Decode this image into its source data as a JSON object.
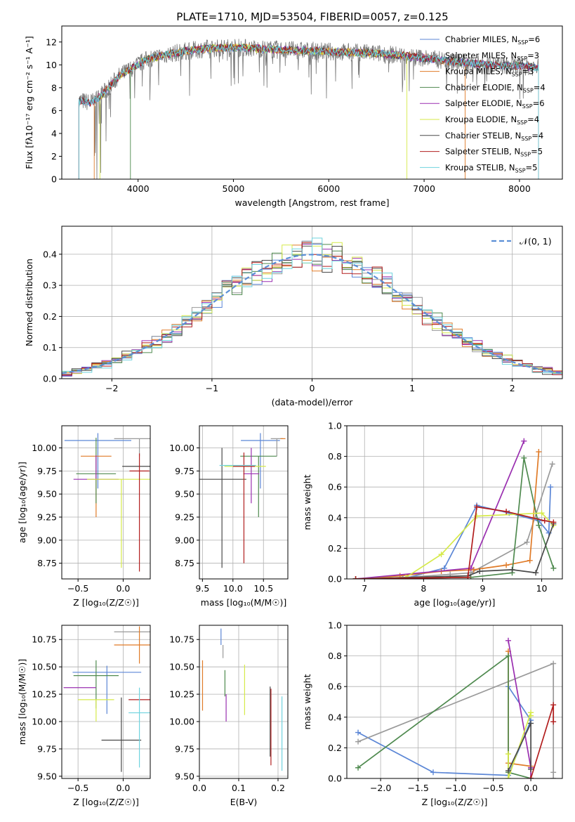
{
  "figure_title": "PLATE=1710, MJD=53504, FIBERID=0057, z=0.125",
  "models": [
    {
      "name": "Chabrier MILES",
      "nssp": "6",
      "color": "#5b86d6"
    },
    {
      "name": "Salpeter MILES",
      "nssp": "3",
      "color": "#9a9a9a"
    },
    {
      "name": "Kroupa MILES",
      "nssp": "3",
      "color": "#e07b28"
    },
    {
      "name": "Chabrier ELODIE",
      "nssp": "4",
      "color": "#4f8a4f"
    },
    {
      "name": "Salpeter ELODIE",
      "nssp": "6",
      "color": "#9a2fb0"
    },
    {
      "name": "Kroupa ELODIE",
      "nssp": "4",
      "color": "#d6ea4a"
    },
    {
      "name": "Chabrier STELIB",
      "nssp": "4",
      "color": "#4a4a4a"
    },
    {
      "name": "Salpeter STELIB",
      "nssp": "5",
      "color": "#b21e1e"
    },
    {
      "name": "Kroupa STELIB",
      "nssp": "5",
      "color": "#6fd3de"
    }
  ],
  "chart_data": [
    {
      "id": "spectrum",
      "type": "line",
      "xlabel": "wavelength [Angstrom, rest frame]",
      "ylabel": "Flux [fλ10⁻¹⁷ erg cm⁻² s⁻¹ A⁻¹]",
      "xlim": [
        3200,
        8450
      ],
      "ylim": [
        0,
        13.4
      ],
      "xticks": [
        4000,
        5000,
        6000,
        7000,
        8000
      ],
      "yticks": [
        0,
        2,
        4,
        6,
        8,
        10,
        12
      ],
      "continuum": {
        "x": [
          3380,
          3500,
          3600,
          3700,
          3800,
          3950,
          4100,
          4300,
          4500,
          4700,
          4900,
          5100,
          5300,
          5600,
          5900,
          6200,
          6500,
          6800,
          7100,
          7400,
          7700,
          8000,
          8200
        ],
        "y": [
          6.9,
          6.7,
          7.2,
          8.1,
          9.0,
          9.8,
          10.5,
          10.9,
          11.2,
          11.4,
          11.5,
          11.5,
          11.4,
          11.3,
          11.2,
          11.1,
          11.0,
          10.8,
          10.5,
          10.2,
          10.0,
          9.9,
          9.8
        ]
      },
      "model_ranges": [
        [
          3380,
          8200
        ],
        [
          3380,
          8200
        ],
        [
          3540,
          7430
        ],
        [
          3920,
          8200
        ],
        [
          3380,
          8200
        ],
        [
          3600,
          6820
        ],
        [
          3380,
          8200
        ],
        [
          3380,
          8200
        ],
        [
          3380,
          8200
        ]
      ]
    },
    {
      "id": "residuals",
      "type": "histogram",
      "xlabel": "(data-model)/error",
      "ylabel": "Normed distribution",
      "xlim": [
        -2.5,
        2.5
      ],
      "ylim": [
        0,
        0.49
      ],
      "xticks": [
        -2,
        -1,
        0,
        1,
        2
      ],
      "yticks": [
        0.0,
        0.1,
        0.2,
        0.3,
        0.4
      ],
      "bin_width": 0.1,
      "normal_label": "𝒩(0, 1)"
    },
    {
      "id": "age-vs-Z",
      "type": "scatter",
      "xlabel": "Z [log₁₀(Z/Z☉)]",
      "ylabel": "age  [log₁₀(age/yr)]",
      "xlim": [
        -0.68,
        0.3
      ],
      "ylim": [
        8.58,
        10.24
      ],
      "xticks": [
        -0.5,
        0.0
      ],
      "yticks": [
        8.75,
        9.0,
        9.25,
        9.5,
        9.75,
        10.0
      ],
      "points": [
        {
          "x": -0.28,
          "y": 10.08,
          "xerr": 0.37,
          "yerr": [
            0.52,
            0.08
          ]
        },
        {
          "x": 0.18,
          "y": 10.1,
          "xerr": 0.28,
          "yerr": [
            0.19,
            0.0
          ]
        },
        {
          "x": -0.3,
          "y": 9.91,
          "xerr": 0.17,
          "yerr": [
            0.66,
            0.0
          ]
        },
        {
          "x": -0.3,
          "y": 9.72,
          "xerr": 0.22,
          "yerr": [
            0.32,
            0.39
          ]
        },
        {
          "x": -0.3,
          "y": 9.66,
          "xerr": 0.25,
          "yerr": [
            0.0,
            0.26
          ]
        },
        {
          "x": -0.02,
          "y": 9.66,
          "xerr": 0.38,
          "yerr": [
            0.96,
            0.0
          ]
        },
        {
          "x": 0.18,
          "y": 9.8,
          "xerr": 0.19,
          "yerr": [
            0.0,
            0.0
          ]
        },
        {
          "x": 0.18,
          "y": 9.75,
          "xerr": 0.11,
          "yerr": [
            1.09,
            0.19
          ]
        }
      ]
    },
    {
      "id": "age-vs-mass",
      "type": "scatter",
      "xlabel": "mass [log₁₀(M/M☉)]",
      "ylabel": "",
      "xlim": [
        9.45,
        10.9
      ],
      "ylim": [
        8.58,
        10.24
      ],
      "xticks": [
        9.5,
        10.0,
        10.5
      ],
      "yticks": [
        8.75,
        9.0,
        9.25,
        9.5,
        9.75,
        10.0
      ],
      "points": [
        {
          "x": 10.45,
          "y": 10.08,
          "xerr": 0.32,
          "yerr": [
            0.52,
            0.08
          ]
        },
        {
          "x": 10.72,
          "y": 10.1,
          "xerr": 0.1,
          "yerr": [
            0.19,
            0.0
          ]
        },
        {
          "x": 10.82,
          "y": 10.1,
          "xerr": 0.04,
          "yerr": [
            0.0,
            0.0
          ]
        },
        {
          "x": 10.42,
          "y": 9.91,
          "xerr": 0.3,
          "yerr": [
            0.66,
            0.0
          ]
        },
        {
          "x": 10.3,
          "y": 9.72,
          "xerr": 0.13,
          "yerr": [
            0.32,
            0.28
          ]
        },
        {
          "x": 10.2,
          "y": 9.8,
          "xerr": 0.34,
          "yerr": [
            0.0,
            0.0
          ]
        },
        {
          "x": 9.82,
          "y": 9.66,
          "xerr": 0.4,
          "yerr": [
            0.96,
            0.34
          ]
        },
        {
          "x": 10.18,
          "y": 9.8,
          "xerr": 0.18,
          "yerr": [
            1.05,
            0.15
          ]
        },
        {
          "x": 10.08,
          "y": 9.81,
          "xerr": 0.3,
          "yerr": [
            0.0,
            0.0
          ]
        }
      ]
    },
    {
      "id": "mass-weight-vs-age",
      "type": "line",
      "xlabel": "age  [log₁₀(age/yr)]",
      "ylabel": "mass weight",
      "xlim": [
        6.7,
        10.35
      ],
      "ylim": [
        0,
        1.0
      ],
      "xticks": [
        7,
        8,
        9,
        10
      ],
      "yticks": [
        0.0,
        0.2,
        0.4,
        0.6,
        0.8,
        1.0
      ],
      "series": [
        {
          "x": [
            6.85,
            7.65,
            8.35,
            8.9,
            9.45,
            9.95,
            10.12,
            10.15
          ],
          "y": [
            0.0,
            0.0,
            0.07,
            0.48,
            0.43,
            0.38,
            0.3,
            0.6
          ]
        },
        {
          "x": [
            6.85,
            7.7,
            8.45,
            8.8,
            9.75,
            10.18
          ],
          "y": [
            0.0,
            0.01,
            0.03,
            0.04,
            0.24,
            0.75
          ]
        },
        {
          "x": [
            6.85,
            7.6,
            8.3,
            8.85,
            9.4,
            9.8,
            9.95
          ],
          "y": [
            0.0,
            0.02,
            0.05,
            0.06,
            0.09,
            0.12,
            0.83
          ]
        },
        {
          "x": [
            6.85,
            8.8,
            9.5,
            9.7,
            9.95,
            10.2
          ],
          "y": [
            0.0,
            0.01,
            0.04,
            0.79,
            0.35,
            0.07
          ]
        },
        {
          "x": [
            6.85,
            8.8,
            9.7
          ],
          "y": [
            0.0,
            0.07,
            0.9
          ]
        },
        {
          "x": [
            6.85,
            7.7,
            8.3,
            8.9,
            10.0,
            10.2
          ],
          "y": [
            0.0,
            0.01,
            0.16,
            0.41,
            0.43,
            0.35
          ]
        },
        {
          "x": [
            6.85,
            8.75,
            8.95,
            9.5,
            9.9,
            10.2
          ],
          "y": [
            0.0,
            0.02,
            0.05,
            0.06,
            0.04,
            0.36
          ]
        },
        {
          "x": [
            6.85,
            8.75,
            8.9,
            9.4,
            10.05,
            10.2
          ],
          "y": [
            0.0,
            0.01,
            0.47,
            0.44,
            0.38,
            0.37
          ]
        }
      ]
    },
    {
      "id": "mass-vs-Z",
      "type": "scatter",
      "xlabel": "Z [log₁₀(Z/Z☉)]",
      "ylabel": "mass [log₁₀(M/M☉)]",
      "xlim": [
        -0.68,
        0.3
      ],
      "ylim": [
        9.48,
        10.88
      ],
      "xticks": [
        -0.5,
        0.0
      ],
      "yticks": [
        9.5,
        9.75,
        10.0,
        10.25,
        10.5,
        10.75
      ],
      "points": [
        {
          "x": -0.18,
          "y": 10.45,
          "xerr": 0.38,
          "yerr": [
            0.38,
            0.06
          ]
        },
        {
          "x": 0.18,
          "y": 10.82,
          "xerr": 0.28,
          "yerr": [
            0.0,
            0.0
          ]
        },
        {
          "x": 0.18,
          "y": 10.7,
          "xerr": 0.28,
          "yerr": [
            0.17,
            0.17
          ]
        },
        {
          "x": -0.3,
          "y": 10.42,
          "xerr": 0.25,
          "yerr": [
            0.3,
            0.14
          ]
        },
        {
          "x": -0.48,
          "y": 10.31,
          "xerr": 0.18,
          "yerr": [
            0.0,
            0.0
          ]
        },
        {
          "x": -0.3,
          "y": 10.2,
          "xerr": 0.2,
          "yerr": [
            0.2,
            0.0
          ]
        },
        {
          "x": -0.02,
          "y": 9.83,
          "xerr": 0.22,
          "yerr": [
            0.29,
            0.39
          ]
        },
        {
          "x": 0.18,
          "y": 10.2,
          "xerr": 0.12,
          "yerr": [
            0.0,
            0.0
          ]
        },
        {
          "x": 0.18,
          "y": 10.08,
          "xerr": 0.12,
          "yerr": [
            0.5,
            0.23
          ]
        }
      ]
    },
    {
      "id": "mass-vs-EBV",
      "type": "scatter",
      "xlabel": "E(B-V)",
      "ylabel": "",
      "xlim": [
        0.0,
        0.225
      ],
      "ylim": [
        9.48,
        10.88
      ],
      "xticks": [
        0.0,
        0.1,
        0.2
      ],
      "yticks": [
        9.5,
        9.75,
        10.0,
        10.25,
        10.5,
        10.75
      ],
      "points": [
        {
          "x": 0.055,
          "y": 10.85,
          "xerr": 0.0,
          "yerr": [
            0.15,
            0.0
          ]
        },
        {
          "x": 0.06,
          "y": 10.7,
          "xerr": 0.0,
          "yerr": [
            0.12,
            0.0
          ]
        },
        {
          "x": 0.008,
          "y": 10.33,
          "xerr": 0.0,
          "yerr": [
            0.23,
            0.23
          ]
        },
        {
          "x": 0.065,
          "y": 10.35,
          "xerr": 0.0,
          "yerr": [
            0.12,
            0.12
          ]
        },
        {
          "x": 0.068,
          "y": 10.15,
          "xerr": 0.0,
          "yerr": [
            0.15,
            0.1
          ]
        },
        {
          "x": 0.115,
          "y": 10.33,
          "xerr": 0.0,
          "yerr": [
            0.27,
            0.19
          ]
        },
        {
          "x": 0.18,
          "y": 10.0,
          "xerr": 0.0,
          "yerr": [
            0.32,
            0.32
          ]
        },
        {
          "x": 0.182,
          "y": 9.95,
          "xerr": 0.0,
          "yerr": [
            0.35,
            0.35
          ]
        },
        {
          "x": 0.21,
          "y": 9.88,
          "xerr": 0.0,
          "yerr": [
            0.33,
            0.35
          ]
        }
      ]
    },
    {
      "id": "mass-weight-vs-Z",
      "type": "line",
      "xlabel": "Z [log₁₀(Z/Z☉)]",
      "ylabel": "mass weight",
      "xlim": [
        -2.45,
        0.42
      ],
      "ylim": [
        0,
        1.0
      ],
      "xticks": [
        -2.0,
        -1.5,
        -1.0,
        -0.5,
        0.0
      ],
      "yticks": [
        0.0,
        0.2,
        0.4,
        0.6,
        0.8,
        1.0
      ],
      "series": [
        {
          "x": [
            -2.3,
            -1.3,
            -0.3,
            0.0,
            -0.3
          ],
          "y": [
            0.3,
            0.04,
            0.02,
            0.38,
            0.6
          ]
        },
        {
          "x": [
            -2.3,
            0.3,
            0.3,
            0.3
          ],
          "y": [
            0.24,
            0.75,
            0.04,
            0.0
          ]
        },
        {
          "x": [
            -0.3,
            -0.3,
            0.0,
            0.0
          ],
          "y": [
            0.83,
            0.1,
            0.08,
            0.0
          ]
        },
        {
          "x": [
            -2.3,
            -0.3,
            -0.3,
            0.0
          ],
          "y": [
            0.07,
            0.8,
            0.04,
            0.0
          ]
        },
        {
          "x": [
            -0.3,
            0.0,
            0.0
          ],
          "y": [
            0.9,
            0.07,
            0.0
          ]
        },
        {
          "x": [
            -0.3,
            -0.3,
            0.0,
            0.0
          ],
          "y": [
            0.16,
            0.0,
            0.43,
            0.41
          ]
        },
        {
          "x": [
            -0.3,
            0.0,
            0.0
          ],
          "y": [
            0.05,
            0.36,
            0.06
          ]
        },
        {
          "x": [
            0.0,
            0.3,
            0.3
          ],
          "y": [
            0.0,
            0.48,
            0.37
          ]
        }
      ]
    }
  ]
}
